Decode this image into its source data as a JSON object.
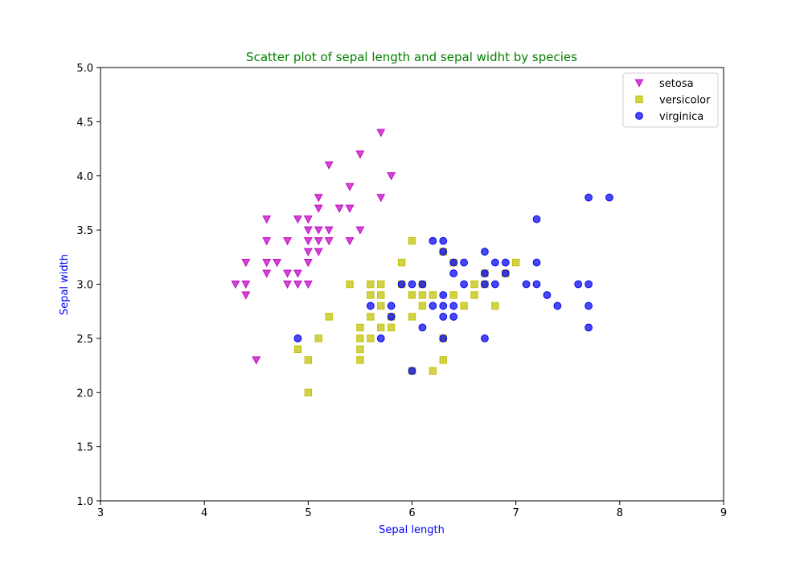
{
  "chart_data": {
    "type": "scatter",
    "title": "Scatter plot of sepal length and sepal widht by species",
    "xlabel": "Sepal length",
    "ylabel": "Sepal width",
    "xlim": [
      3,
      9
    ],
    "ylim": [
      1.0,
      5.0
    ],
    "x_ticks": [
      "3",
      "4",
      "5",
      "6",
      "7",
      "8",
      "9"
    ],
    "y_ticks": [
      "1.0",
      "1.5",
      "2.0",
      "2.5",
      "3.0",
      "3.5",
      "4.0",
      "4.5",
      "5.0"
    ],
    "grid": false,
    "legend_position": "top-right",
    "series": [
      {
        "name": "setosa",
        "marker": "triangle-down",
        "color": "#c000c0",
        "points": [
          [
            4.3,
            3.0
          ],
          [
            4.4,
            2.9
          ],
          [
            4.4,
            3.0
          ],
          [
            4.4,
            3.2
          ],
          [
            4.5,
            2.3
          ],
          [
            4.6,
            3.1
          ],
          [
            4.6,
            3.2
          ],
          [
            4.6,
            3.4
          ],
          [
            4.6,
            3.6
          ],
          [
            4.7,
            3.2
          ],
          [
            4.8,
            3.0
          ],
          [
            4.8,
            3.1
          ],
          [
            4.8,
            3.4
          ],
          [
            4.9,
            3.0
          ],
          [
            4.9,
            3.1
          ],
          [
            4.9,
            3.6
          ],
          [
            5.0,
            3.0
          ],
          [
            5.0,
            3.2
          ],
          [
            5.0,
            3.3
          ],
          [
            5.0,
            3.4
          ],
          [
            5.0,
            3.5
          ],
          [
            5.0,
            3.6
          ],
          [
            5.1,
            3.3
          ],
          [
            5.1,
            3.4
          ],
          [
            5.1,
            3.5
          ],
          [
            5.1,
            3.7
          ],
          [
            5.1,
            3.8
          ],
          [
            5.2,
            3.4
          ],
          [
            5.2,
            3.5
          ],
          [
            5.2,
            4.1
          ],
          [
            5.3,
            3.7
          ],
          [
            5.4,
            3.4
          ],
          [
            5.4,
            3.7
          ],
          [
            5.4,
            3.9
          ],
          [
            5.5,
            3.5
          ],
          [
            5.5,
            4.2
          ],
          [
            5.7,
            3.8
          ],
          [
            5.7,
            4.4
          ],
          [
            5.8,
            4.0
          ]
        ]
      },
      {
        "name": "versicolor",
        "marker": "square",
        "color": "#c0c000",
        "points": [
          [
            4.9,
            2.4
          ],
          [
            5.0,
            2.0
          ],
          [
            5.0,
            2.3
          ],
          [
            5.1,
            2.5
          ],
          [
            5.2,
            2.7
          ],
          [
            5.4,
            3.0
          ],
          [
            5.5,
            2.3
          ],
          [
            5.5,
            2.4
          ],
          [
            5.5,
            2.5
          ],
          [
            5.5,
            2.6
          ],
          [
            5.6,
            2.5
          ],
          [
            5.6,
            2.7
          ],
          [
            5.6,
            2.9
          ],
          [
            5.6,
            3.0
          ],
          [
            5.7,
            2.6
          ],
          [
            5.7,
            2.8
          ],
          [
            5.7,
            2.9
          ],
          [
            5.7,
            3.0
          ],
          [
            5.8,
            2.6
          ],
          [
            5.8,
            2.7
          ],
          [
            5.9,
            3.0
          ],
          [
            5.9,
            3.2
          ],
          [
            6.0,
            2.2
          ],
          [
            6.0,
            2.7
          ],
          [
            6.0,
            2.9
          ],
          [
            6.0,
            3.4
          ],
          [
            6.1,
            2.8
          ],
          [
            6.1,
            2.9
          ],
          [
            6.1,
            3.0
          ],
          [
            6.2,
            2.2
          ],
          [
            6.2,
            2.9
          ],
          [
            6.3,
            2.3
          ],
          [
            6.3,
            2.5
          ],
          [
            6.3,
            3.3
          ],
          [
            6.4,
            2.9
          ],
          [
            6.4,
            3.2
          ],
          [
            6.5,
            2.8
          ],
          [
            6.6,
            2.9
          ],
          [
            6.6,
            3.0
          ],
          [
            6.7,
            3.0
          ],
          [
            6.7,
            3.1
          ],
          [
            6.8,
            2.8
          ],
          [
            6.9,
            3.1
          ],
          [
            7.0,
            3.2
          ]
        ]
      },
      {
        "name": "virginica",
        "marker": "circle",
        "color": "#0000f0",
        "points": [
          [
            4.9,
            2.5
          ],
          [
            5.6,
            2.8
          ],
          [
            5.7,
            2.5
          ],
          [
            5.8,
            2.7
          ],
          [
            5.8,
            2.8
          ],
          [
            5.9,
            3.0
          ],
          [
            6.0,
            2.2
          ],
          [
            6.0,
            3.0
          ],
          [
            6.1,
            2.6
          ],
          [
            6.1,
            3.0
          ],
          [
            6.2,
            2.8
          ],
          [
            6.2,
            3.4
          ],
          [
            6.3,
            2.5
          ],
          [
            6.3,
            2.7
          ],
          [
            6.3,
            2.8
          ],
          [
            6.3,
            2.9
          ],
          [
            6.3,
            3.3
          ],
          [
            6.3,
            3.4
          ],
          [
            6.4,
            2.7
          ],
          [
            6.4,
            2.8
          ],
          [
            6.4,
            3.1
          ],
          [
            6.4,
            3.2
          ],
          [
            6.5,
            3.0
          ],
          [
            6.5,
            3.2
          ],
          [
            6.7,
            2.5
          ],
          [
            6.7,
            3.0
          ],
          [
            6.7,
            3.1
          ],
          [
            6.7,
            3.3
          ],
          [
            6.8,
            3.0
          ],
          [
            6.8,
            3.2
          ],
          [
            6.9,
            3.1
          ],
          [
            6.9,
            3.2
          ],
          [
            7.1,
            3.0
          ],
          [
            7.2,
            3.0
          ],
          [
            7.2,
            3.2
          ],
          [
            7.2,
            3.6
          ],
          [
            7.3,
            2.9
          ],
          [
            7.4,
            2.8
          ],
          [
            7.6,
            3.0
          ],
          [
            7.7,
            2.6
          ],
          [
            7.7,
            2.8
          ],
          [
            7.7,
            3.0
          ],
          [
            7.7,
            3.8
          ],
          [
            7.9,
            3.8
          ]
        ]
      }
    ]
  }
}
